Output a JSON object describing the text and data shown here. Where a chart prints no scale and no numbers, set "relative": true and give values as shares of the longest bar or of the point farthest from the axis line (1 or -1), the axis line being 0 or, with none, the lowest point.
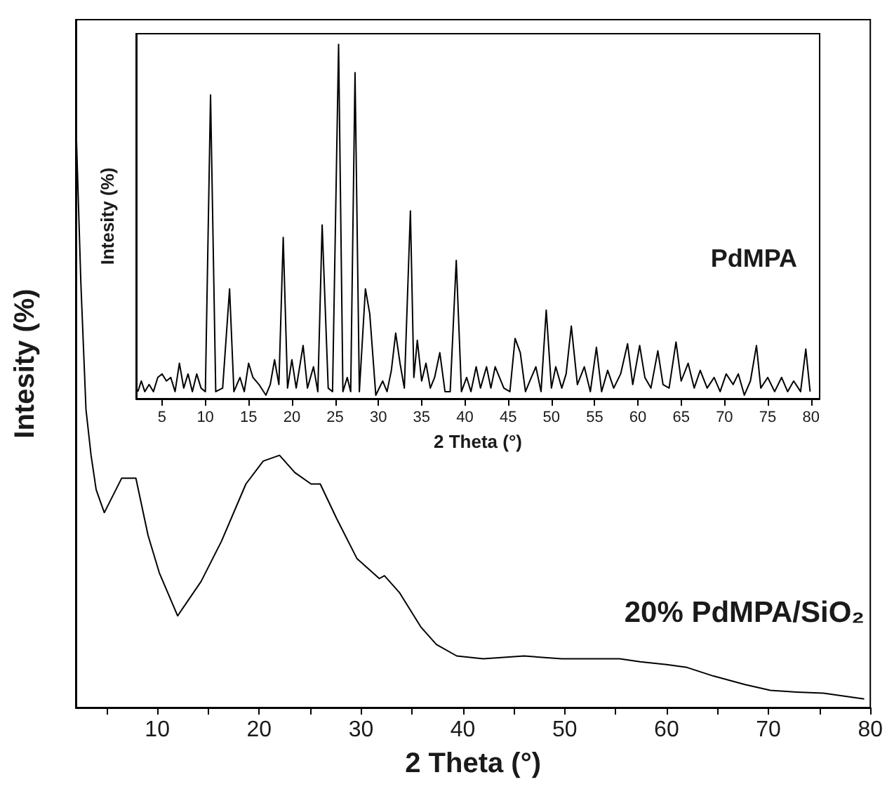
{
  "chart_data": [
    {
      "type": "line",
      "relative": true,
      "xlabel": "2 Theta (°)",
      "ylabel": "Intesity (%)",
      "annotations": [
        "20% PdMPA/SiO₂"
      ],
      "tick_labels": "x",
      "xlim": [
        2,
        80
      ],
      "xticks": [
        {
          "value": 5,
          "label": null
        },
        10,
        {
          "value": 15,
          "label": null
        },
        20,
        {
          "value": 25,
          "label": null
        },
        30,
        {
          "value": 35,
          "label": null
        },
        40,
        {
          "value": 45,
          "label": null
        },
        50,
        {
          "value": 55,
          "label": null
        },
        60,
        {
          "value": 65,
          "label": null
        },
        70,
        {
          "value": 75,
          "label": null
        },
        80
      ],
      "series": [
        {
          "color": "#000000",
          "x": [
            2.05,
            2.5,
            3,
            3.5,
            4,
            4.8,
            6.5,
            7.9,
            9.1,
            10.2,
            12,
            14.3,
            16.3,
            18.7,
            20.4,
            22,
            23.5,
            25.1,
            26,
            27.6,
            29.6,
            31.8,
            32.3,
            33.8,
            35.9,
            37.4,
            39.4,
            42,
            46,
            49.7,
            52.3,
            55.4,
            57.4,
            60,
            62,
            64.6,
            67.7,
            70.2,
            72.8,
            75.4,
            79.4
          ],
          "values": [
            1.0,
            0.74,
            0.52,
            0.44,
            0.38,
            0.34,
            0.4,
            0.4,
            0.3,
            0.235,
            0.16,
            0.22,
            0.29,
            0.39,
            0.43,
            0.44,
            0.41,
            0.39,
            0.39,
            0.33,
            0.26,
            0.225,
            0.23,
            0.2,
            0.14,
            0.11,
            0.09,
            0.085,
            0.09,
            0.085,
            0.085,
            0.085,
            0.08,
            0.075,
            0.07,
            0.055,
            0.04,
            0.03,
            0.027,
            0.025,
            0.015
          ]
        }
      ]
    },
    {
      "type": "line",
      "relative": true,
      "xlabel": "2 Theta (°)",
      "ylabel": "Intesity (%)",
      "annotations": [
        "PdMPA"
      ],
      "tick_labels": "x",
      "xlim": [
        2,
        81
      ],
      "xticks": [
        5,
        10,
        15,
        20,
        25,
        30,
        35,
        40,
        45,
        50,
        55,
        60,
        65,
        70,
        75,
        80
      ],
      "series": [
        {
          "color": "#000000",
          "x": [
            2.2,
            2.6,
            3,
            3.5,
            4,
            4.5,
            5,
            5.5,
            6,
            6.5,
            7,
            7.5,
            8,
            8.5,
            9,
            9.5,
            10,
            10.6,
            11.2,
            12,
            12.8,
            13.3,
            14,
            14.5,
            15,
            15.5,
            16.2,
            17,
            17.5,
            18,
            18.5,
            19,
            19.5,
            20,
            20.5,
            21.3,
            21.8,
            22.5,
            23,
            23.5,
            24.2,
            24.7,
            25.4,
            25.9,
            26.4,
            26.8,
            27.3,
            27.8,
            28.5,
            29,
            29.7,
            30.5,
            31,
            31.5,
            32,
            32.5,
            33,
            33.7,
            34.1,
            34.5,
            35,
            35.5,
            36,
            36.5,
            37.1,
            37.7,
            38.3,
            39,
            39.6,
            40.2,
            40.7,
            41.3,
            41.8,
            42.5,
            43,
            43.5,
            44.5,
            45.2,
            45.8,
            46.4,
            47,
            47.5,
            48.2,
            48.8,
            49.4,
            50,
            50.5,
            51.2,
            51.7,
            52.3,
            53,
            53.8,
            54.5,
            55.2,
            55.8,
            56.5,
            57.2,
            58,
            58.8,
            59.4,
            60.2,
            60.8,
            61.5,
            62.3,
            62.9,
            63.6,
            64.4,
            65,
            65.8,
            66.5,
            67.2,
            68,
            68.8,
            69.5,
            70.2,
            71,
            71.6,
            72.3,
            73,
            73.7,
            74.2,
            75,
            75.8,
            76.6,
            77.3,
            78,
            78.8,
            79.4,
            79.9
          ],
          "values": [
            0.02,
            0.05,
            0.02,
            0.04,
            0.02,
            0.06,
            0.07,
            0.05,
            0.06,
            0.02,
            0.1,
            0.03,
            0.07,
            0.02,
            0.07,
            0.03,
            0.02,
            0.857,
            0.02,
            0.03,
            0.31,
            0.02,
            0.06,
            0.02,
            0.1,
            0.06,
            0.04,
            0.01,
            0.04,
            0.11,
            0.04,
            0.455,
            0.03,
            0.11,
            0.03,
            0.15,
            0.03,
            0.09,
            0.02,
            0.49,
            0.03,
            0.02,
            1.0,
            0.02,
            0.06,
            0.02,
            0.92,
            0.02,
            0.31,
            0.24,
            0.01,
            0.05,
            0.02,
            0.08,
            0.185,
            0.1,
            0.03,
            0.53,
            0.06,
            0.165,
            0.05,
            0.1,
            0.03,
            0.06,
            0.13,
            0.02,
            0.02,
            0.39,
            0.02,
            0.06,
            0.02,
            0.09,
            0.03,
            0.09,
            0.03,
            0.09,
            0.03,
            0.02,
            0.17,
            0.13,
            0.02,
            0.05,
            0.09,
            0.02,
            0.25,
            0.03,
            0.09,
            0.03,
            0.07,
            0.205,
            0.04,
            0.09,
            0.02,
            0.145,
            0.02,
            0.08,
            0.03,
            0.07,
            0.155,
            0.04,
            0.15,
            0.06,
            0.03,
            0.135,
            0.04,
            0.03,
            0.16,
            0.05,
            0.1,
            0.03,
            0.08,
            0.03,
            0.06,
            0.02,
            0.07,
            0.04,
            0.07,
            0.01,
            0.05,
            0.15,
            0.03,
            0.06,
            0.02,
            0.06,
            0.02,
            0.05,
            0.02,
            0.14,
            0.02
          ]
        }
      ]
    }
  ]
}
